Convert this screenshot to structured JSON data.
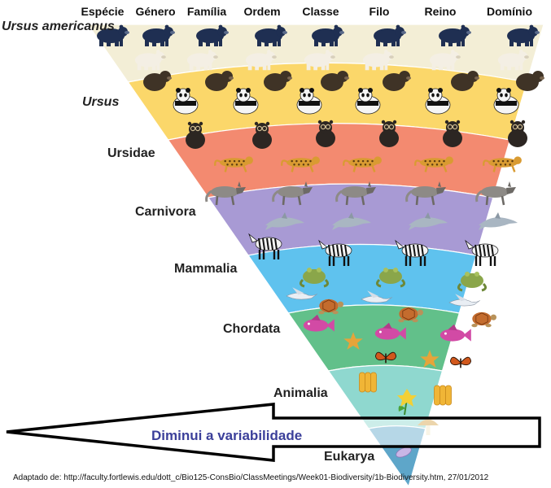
{
  "ranks": [
    "Espécie",
    "Género",
    "Família",
    "Ordem",
    "Classe",
    "Filo",
    "Reino",
    "Domínio"
  ],
  "taxa": {
    "species": "Ursus americanus",
    "genus": "Ursus",
    "family": "Ursidae",
    "order": "Carnivora",
    "class": "Mammalia",
    "phylum": "Chordata",
    "kingdom": "Animalia",
    "domain": "Eukarya"
  },
  "arrow_label": "Diminui a variabilidade",
  "source_caption": "Adaptado de: http://faculty.fortlewis.edu/dott_c/Bio125-ConsBio/ClassMeetings/Week01-Biodiversity/1b-Biodiversity.htm, 27/01/2012",
  "band_colors": [
    "#f3eed6",
    "#fbd76a",
    "#f38a70",
    "#a89ad4",
    "#5fc2ee",
    "#62c08a",
    "#8fd8cf",
    "#5ea6c9"
  ],
  "organisms": [
    "black-bear",
    "polar-bear",
    "brown-bear",
    "panda",
    "spectacled-bear",
    "leopard",
    "wolf",
    "dolphin",
    "zebra",
    "frog",
    "bird",
    "turtle",
    "fish",
    "starfish",
    "butterfly",
    "sponge",
    "flower",
    "mushroom",
    "protist"
  ]
}
